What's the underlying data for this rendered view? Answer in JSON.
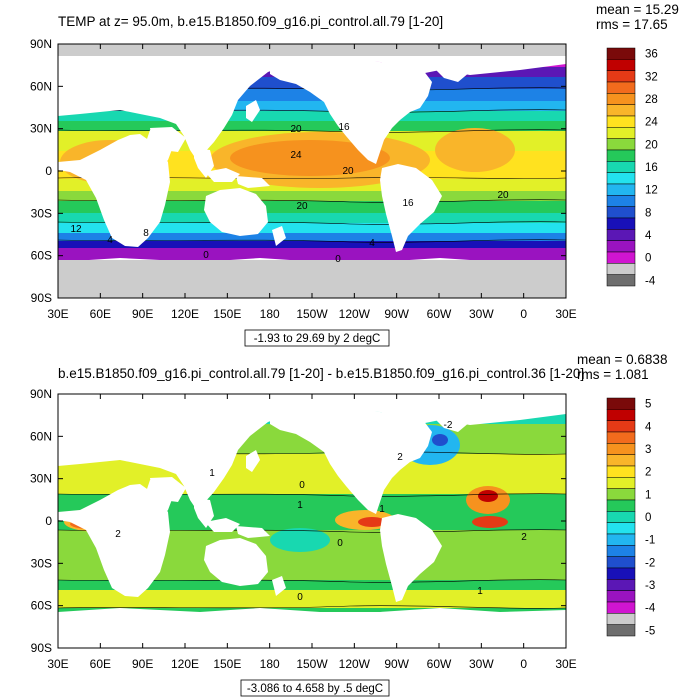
{
  "chart_data": [
    {
      "type": "heatmap",
      "title": "TEMP at z=  95.0m, b.e15.B1850.f09_g16.pi_control.all.79 [1-20]",
      "stats": {
        "mean": "mean = 15.29",
        "rms": "rms = 17.65"
      },
      "xlabel": "",
      "ylabel": "",
      "x_ticks": [
        "30E",
        "60E",
        "90E",
        "120E",
        "150E",
        "180",
        "150W",
        "120W",
        "90W",
        "60W",
        "30W",
        "0",
        "30E"
      ],
      "y_ticks": [
        "90N",
        "60N",
        "30N",
        "0",
        "30S",
        "60S",
        "90S"
      ],
      "xlim": [
        30,
        390
      ],
      "ylim": [
        -90,
        90
      ],
      "info_label": "-1.93 to 29.69 by 2 degC",
      "colorbar": {
        "labels": [
          "36",
          "32",
          "28",
          "24",
          "20",
          "16",
          "12",
          "8",
          "4",
          "0",
          "-4"
        ],
        "colors": [
          "#7a0a0a",
          "#c00000",
          "#e53a16",
          "#f26b1d",
          "#f6921e",
          "#f9b52a",
          "#ffe21f",
          "#e2f028",
          "#8ad93c",
          "#25c95a",
          "#18d8b0",
          "#23e2ee",
          "#22b6f0",
          "#1d82e6",
          "#1f4fcd",
          "#1810b8",
          "#5b17b5",
          "#9a13c0",
          "#d015d0",
          "#cccccc",
          "#6e6e6e"
        ]
      },
      "contour_labels": [
        "20",
        "16",
        "24",
        "20",
        "20",
        "16",
        "20",
        "12",
        "8",
        "4",
        "4",
        "0",
        "0"
      ]
    },
    {
      "type": "heatmap",
      "title": "b.e15.B1850.f09_g16.pi_control.all.79 [1-20] - b.e15.B1850.f09_g16.pi_control.36 [1-20]",
      "stats": {
        "mean": "mean = 0.6838",
        "rms": "rms = 1.081"
      },
      "xlabel": "",
      "ylabel": "",
      "x_ticks": [
        "30E",
        "60E",
        "90E",
        "120E",
        "150E",
        "180",
        "150W",
        "120W",
        "90W",
        "60W",
        "30W",
        "0",
        "30E"
      ],
      "y_ticks": [
        "90N",
        "60N",
        "30N",
        "0",
        "30S",
        "60S",
        "90S"
      ],
      "xlim": [
        30,
        390
      ],
      "ylim": [
        -90,
        90
      ],
      "info_label": "-3.086 to 4.658 by .5 degC",
      "colorbar": {
        "labels": [
          "5",
          "4",
          "3",
          "2",
          "1",
          "0",
          "-1",
          "-2",
          "-3",
          "-4",
          "-5"
        ],
        "colors": [
          "#7a0a0a",
          "#c00000",
          "#e53a16",
          "#f26b1d",
          "#f6921e",
          "#f9b52a",
          "#ffe21f",
          "#e2f028",
          "#8ad93c",
          "#25c95a",
          "#18d8b0",
          "#23e2ee",
          "#22b6f0",
          "#1d82e6",
          "#1f4fcd",
          "#1810b8",
          "#5b17b5",
          "#9a13c0",
          "#d015d0",
          "#cccccc",
          "#6e6e6e"
        ]
      },
      "contour_labels": [
        "0",
        "2",
        "1",
        "1",
        "0",
        "-2",
        "2",
        "1",
        "0",
        "1",
        "2"
      ]
    }
  ]
}
